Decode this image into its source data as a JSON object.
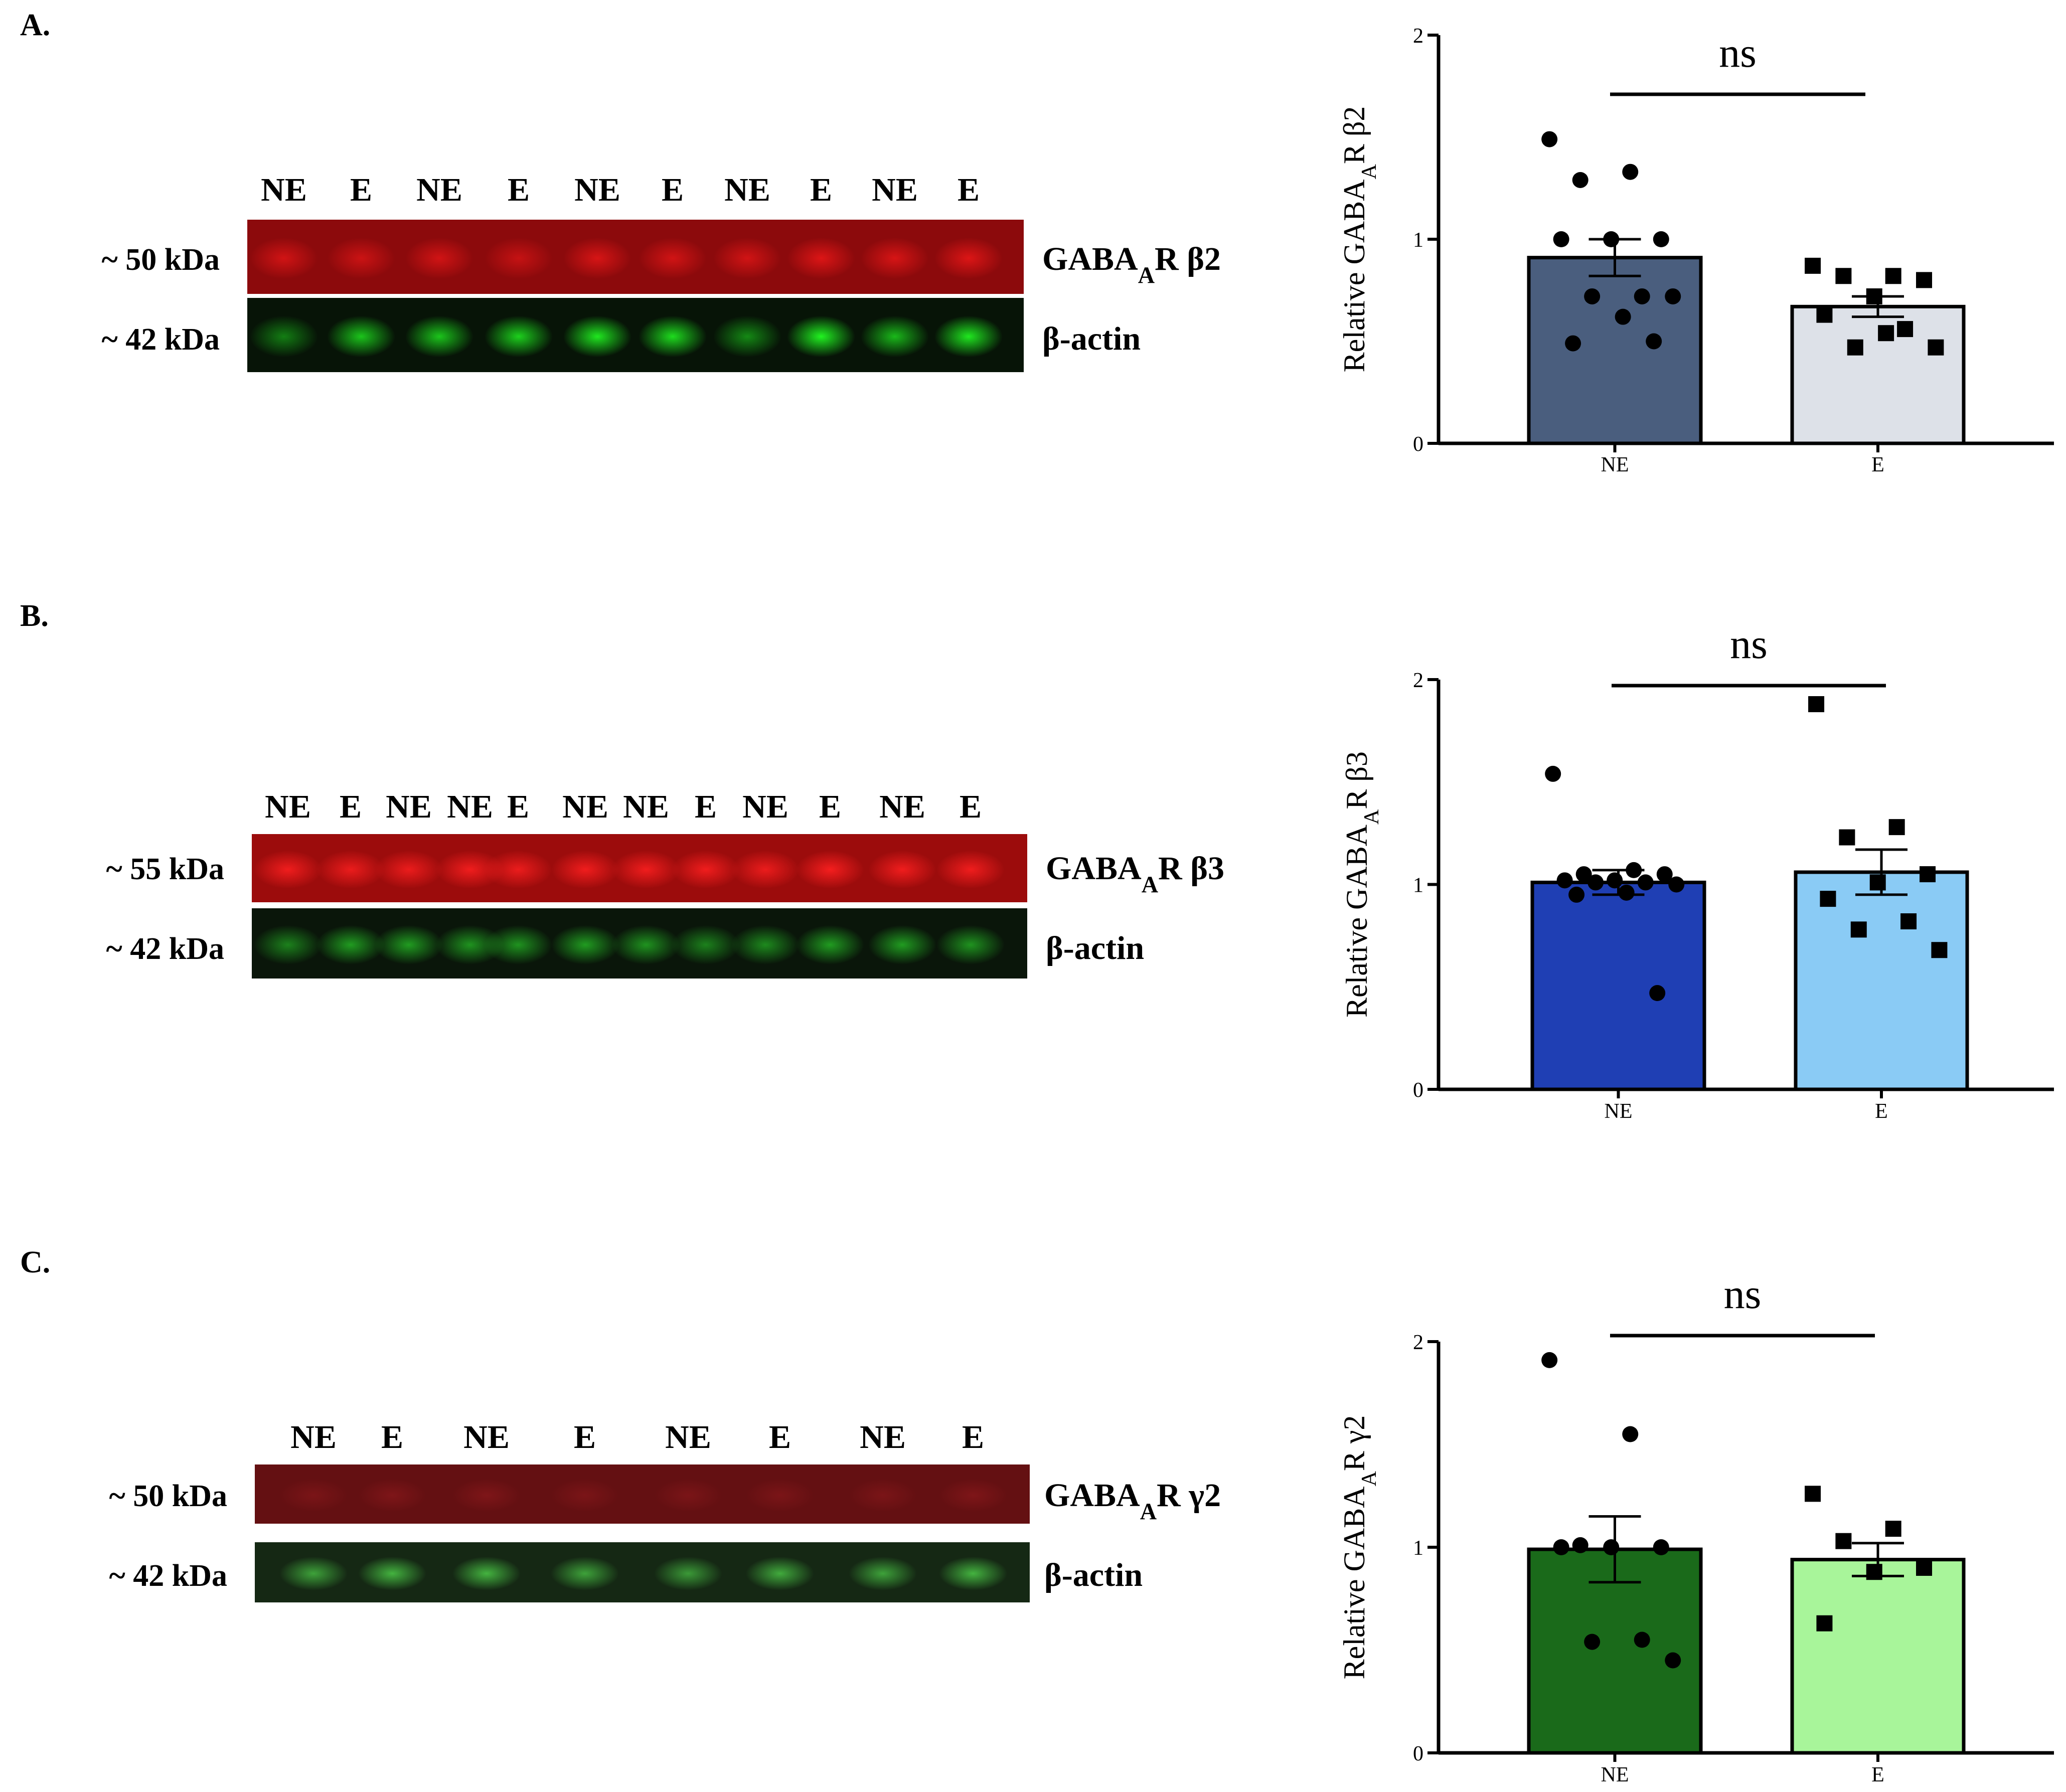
{
  "panels": [
    {
      "label": "A.",
      "blot": {
        "lanes": [
          "NE",
          "E",
          "NE",
          "E",
          "NE",
          "E",
          "NE",
          "E",
          "NE",
          "E"
        ],
        "rows": [
          {
            "marker": "~ 50 kDa",
            "target": "GABAAR β2",
            "target_html": "GABA<tspan baseline-shift=\"sub\" font-size=\"70%\">A</tspan>R β2",
            "color": "red",
            "base": "#8c0a0c",
            "band": "#ff1a1a",
            "intensity": [
              0.6,
              0.55,
              0.6,
              0.5,
              0.65,
              0.6,
              0.6,
              0.7,
              0.65,
              0.7
            ]
          },
          {
            "marker": "~ 42 kDa",
            "target": "β-actin",
            "color": "green",
            "base": "#071407",
            "band": "#22ff22",
            "intensity": [
              0.45,
              0.75,
              0.75,
              0.8,
              0.9,
              0.85,
              0.5,
              0.95,
              0.7,
              0.9
            ]
          }
        ]
      },
      "chart_data": {
        "type": "bar",
        "categories": [
          "NE",
          "E"
        ],
        "values": [
          0.91,
          0.67
        ],
        "sem": [
          0.09,
          0.05
        ],
        "bar_colors": [
          "#4a5e7e",
          "#dde1e8"
        ],
        "marker_shapes": [
          "circle",
          "square"
        ],
        "points": [
          [
            1.49,
            1.33,
            1.29,
            1.0,
            1.0,
            1.0,
            0.72,
            0.72,
            0.72,
            0.62,
            0.49,
            0.5
          ],
          [
            0.87,
            0.82,
            0.82,
            0.8,
            0.72,
            0.63,
            0.56,
            0.47,
            0.47,
            0.54
          ]
        ],
        "ylabel": "Relative GABAAR β2",
        "ylabel_html": "Relative GABA<tspan baseline-shift=\"sub\" font-size=\"70%\">A</tspan>R β2",
        "ylim": [
          0,
          2
        ],
        "yticks": [
          "0",
          "1",
          "2"
        ],
        "significance": "ns"
      }
    },
    {
      "label": "B.",
      "blot": {
        "lanes": [
          "NE",
          "E",
          "NE",
          "NE",
          "E",
          "NE",
          "NE",
          "E",
          "NE",
          "E",
          "NE",
          "E"
        ],
        "rows": [
          {
            "marker": "~ 55 kDa",
            "target": "GABAAR β3",
            "target_html": "GABA<tspan baseline-shift=\"sub\" font-size=\"70%\">A</tspan>R β3",
            "color": "red",
            "base": "#9c0c0c",
            "band": "#ff2020",
            "intensity": [
              0.85,
              0.8,
              0.8,
              0.85,
              0.8,
              0.85,
              0.85,
              0.85,
              0.8,
              0.9,
              0.85,
              0.85
            ]
          },
          {
            "marker": "~ 42 kDa",
            "target": "β-actin",
            "color": "green",
            "base": "#0a160a",
            "band": "#28c828",
            "intensity": [
              0.6,
              0.75,
              0.75,
              0.7,
              0.7,
              0.75,
              0.7,
              0.6,
              0.65,
              0.75,
              0.75,
              0.7
            ]
          }
        ]
      },
      "chart_data": {
        "type": "bar",
        "categories": [
          "NE",
          "E"
        ],
        "values": [
          1.01,
          1.06
        ],
        "sem": [
          0.06,
          0.11
        ],
        "bar_colors": [
          "#1f3fb4",
          "#8acbf5"
        ],
        "marker_shapes": [
          "circle",
          "square"
        ],
        "points": [
          [
            1.54,
            1.07,
            1.05,
            1.05,
            1.02,
            1.02,
            1.01,
            1.01,
            1.0,
            0.96,
            0.95,
            0.47
          ],
          [
            1.88,
            1.28,
            1.23,
            1.05,
            1.01,
            0.93,
            0.82,
            0.78,
            0.68
          ]
        ],
        "ylabel": "Relative GABAAR β3",
        "ylabel_html": "Relative GABA<tspan baseline-shift=\"sub\" font-size=\"70%\">A</tspan>R β3",
        "ylim": [
          0,
          2
        ],
        "yticks": [
          "0",
          "1",
          "2"
        ],
        "significance": "ns"
      }
    },
    {
      "label": "C.",
      "blot": {
        "lanes": [
          "NE",
          "E",
          "NE",
          "E",
          "NE",
          "E",
          "NE",
          "E"
        ],
        "rows": [
          {
            "marker": "~ 50 kDa",
            "target": "GABAAR γ2",
            "target_html": "GABA<tspan baseline-shift=\"sub\" font-size=\"70%\">A</tspan>R γ2",
            "color": "red",
            "base": "#641012",
            "band": "#b02024",
            "intensity": [
              0.3,
              0.35,
              0.35,
              0.3,
              0.3,
              0.3,
              0.3,
              0.35
            ]
          },
          {
            "marker": "~ 42 kDa",
            "target": "β-actin",
            "color": "green",
            "base": "#152814",
            "band": "#4fd64a",
            "intensity": [
              0.7,
              0.8,
              0.8,
              0.7,
              0.65,
              0.75,
              0.7,
              0.8
            ]
          }
        ]
      },
      "chart_data": {
        "type": "bar",
        "categories": [
          "NE",
          "E"
        ],
        "values": [
          0.99,
          0.94
        ],
        "sem": [
          0.16,
          0.08
        ],
        "bar_colors": [
          "#1a6a1a",
          "#a8f59a"
        ],
        "marker_shapes": [
          "circle",
          "square"
        ],
        "points": [
          [
            1.91,
            1.55,
            1.01,
            1.0,
            1.0,
            1.0,
            0.55,
            0.54,
            0.45
          ],
          [
            1.26,
            1.09,
            1.03,
            0.9,
            0.88,
            0.63
          ]
        ],
        "ylabel": "Relative GABAAR γ2",
        "ylabel_html": "Relative GABA<tspan baseline-shift=\"sub\" font-size=\"70%\">A</tspan>R γ2",
        "ylim": [
          0,
          2
        ],
        "yticks": [
          "0",
          "1",
          "2"
        ],
        "significance": "ns"
      }
    }
  ]
}
